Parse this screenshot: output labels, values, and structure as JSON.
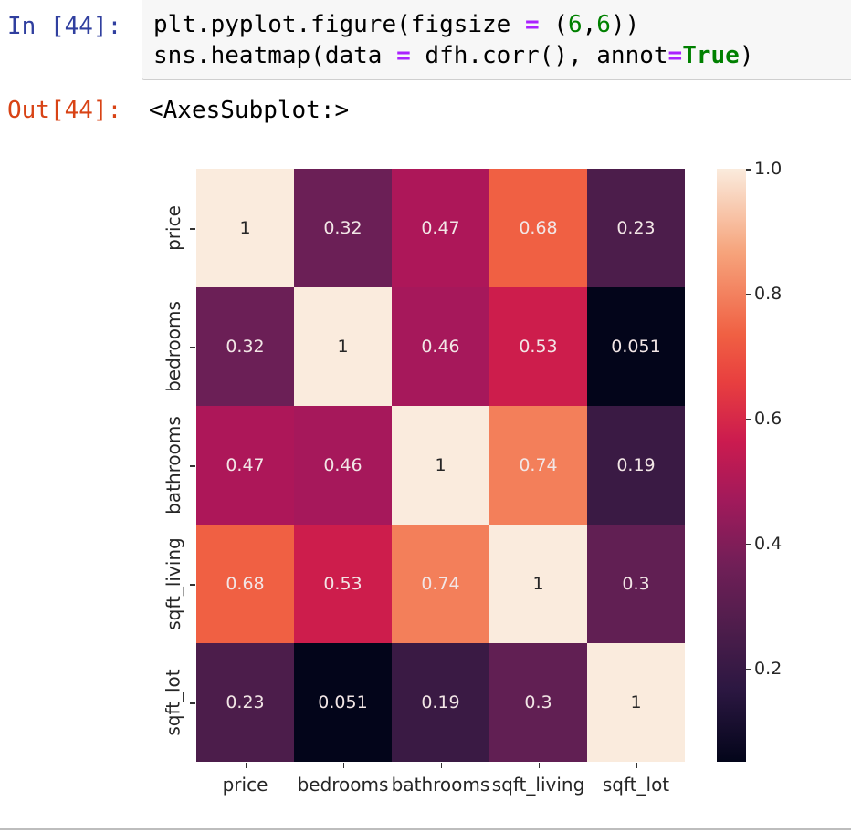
{
  "cell_in": {
    "prompt": "In [44]:",
    "code_lines": [
      {
        "parts": [
          {
            "t": "plt.pyplot.figure(figsize ",
            "c": ""
          },
          {
            "t": "=",
            "c": "op"
          },
          {
            "t": " (",
            "c": ""
          },
          {
            "t": "6",
            "c": "num"
          },
          {
            "t": ",",
            "c": ""
          },
          {
            "t": "6",
            "c": "num"
          },
          {
            "t": "))",
            "c": ""
          }
        ]
      },
      {
        "parts": [
          {
            "t": "sns.heatmap(data ",
            "c": ""
          },
          {
            "t": "=",
            "c": "op"
          },
          {
            "t": " dfh.corr(), annot",
            "c": ""
          },
          {
            "t": "=",
            "c": "op"
          },
          {
            "t": "True",
            "c": "kw"
          },
          {
            "t": ")",
            "c": ""
          }
        ]
      }
    ]
  },
  "cell_out": {
    "prompt": "Out[44]:",
    "text": "<AxesSubplot:>"
  },
  "chart_data": {
    "type": "heatmap",
    "title": "",
    "xlabel": "",
    "ylabel": "",
    "x_labels": [
      "price",
      "bedrooms",
      "bathrooms",
      "sqft_living",
      "sqft_lot"
    ],
    "y_labels": [
      "price",
      "bedrooms",
      "bathrooms",
      "sqft_living",
      "sqft_lot"
    ],
    "values": [
      [
        1,
        0.32,
        0.47,
        0.68,
        0.23
      ],
      [
        0.32,
        1,
        0.46,
        0.53,
        0.051
      ],
      [
        0.47,
        0.46,
        1,
        0.74,
        0.19
      ],
      [
        0.68,
        0.53,
        0.74,
        1,
        0.3
      ],
      [
        0.23,
        0.051,
        0.19,
        0.3,
        1
      ]
    ],
    "annotations": [
      [
        "1",
        "0.32",
        "0.47",
        "0.68",
        "0.23"
      ],
      [
        "0.32",
        "1",
        "0.46",
        "0.53",
        "0.051"
      ],
      [
        "0.47",
        "0.46",
        "1",
        "0.74",
        "0.19"
      ],
      [
        "0.68",
        "0.53",
        "0.74",
        "1",
        "0.3"
      ],
      [
        "0.23",
        "0.051",
        "0.19",
        "0.3",
        "1"
      ]
    ],
    "cell_colors": [
      [
        "#faebdd",
        "#6b1f56",
        "#ad1759",
        "#f06043",
        "#4c1d4b"
      ],
      [
        "#6b1f56",
        "#faebdd",
        "#a6185b",
        "#cd1d4c",
        "#03051a"
      ],
      [
        "#ad1759",
        "#a6185b",
        "#faebdd",
        "#f37f5a",
        "#3a1a44"
      ],
      [
        "#f06043",
        "#cd1d4c",
        "#f37f5a",
        "#faebdd",
        "#611f53"
      ],
      [
        "#4c1d4b",
        "#03051a",
        "#3a1a44",
        "#611f53",
        "#faebdd"
      ]
    ],
    "colormap": "rocket",
    "colorbar": {
      "ticks": [
        "1.0",
        "0.8",
        "0.6",
        "0.4",
        "0.2"
      ],
      "range": [
        0.051,
        1.0
      ]
    },
    "legend_position": "right"
  }
}
